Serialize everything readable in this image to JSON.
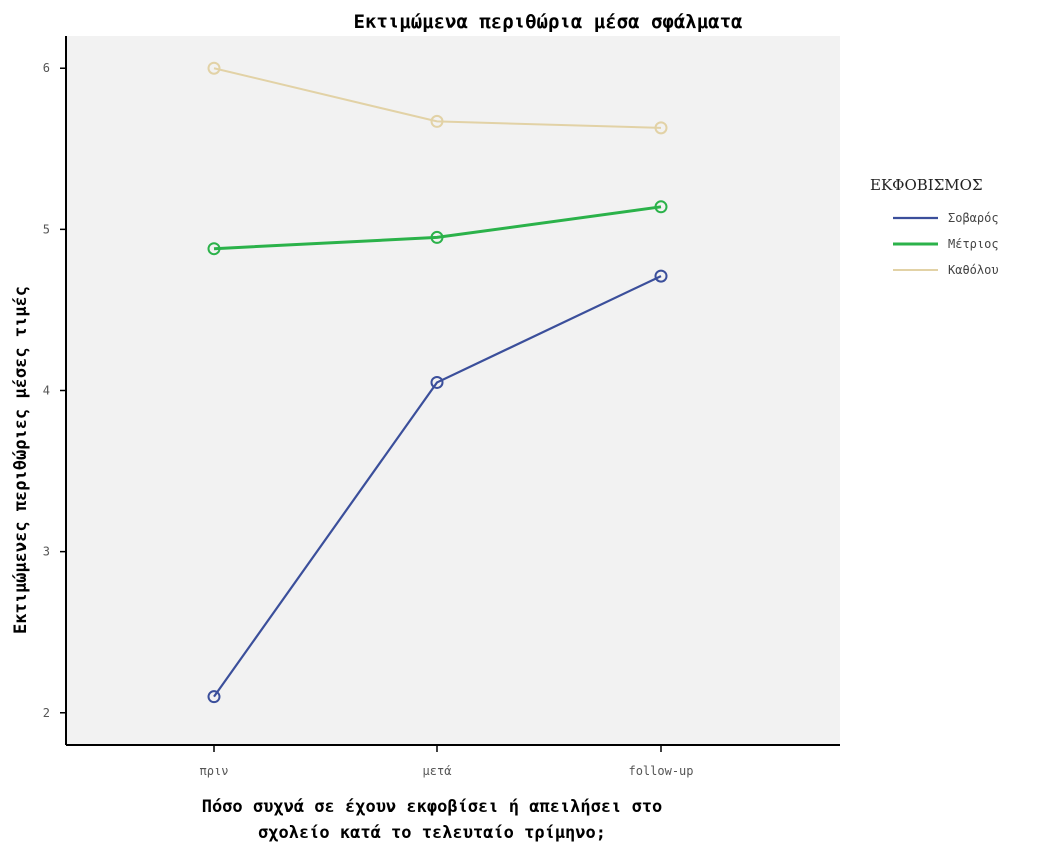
{
  "chart_data": {
    "type": "line",
    "title": "Εκτιμώμενα περιθώρια μέσα σφάλματα",
    "xlabel": [
      "Πόσο συχνά σε έχουν εκφοβίσει ή απειλήσει στο",
      "σχολείο κατά το τελευταίο τρίμηνο;"
    ],
    "ylabel": "Εκτιμώμενες περιθώριες μέσες τιμές",
    "categories": [
      "πριν",
      "μετά",
      "follow-up"
    ],
    "ylim": [
      1.8,
      6.2
    ],
    "yticks": [
      2,
      3,
      4,
      5,
      6
    ],
    "legend": {
      "title": "ΕΚΦΟΒΙΣΜΟΣ",
      "position": "right"
    },
    "series": [
      {
        "name": "Σοβαρός",
        "values": [
          2.1,
          4.05,
          4.71
        ],
        "color": "#3b4f9b"
      },
      {
        "name": "Μέτριος",
        "values": [
          4.88,
          4.95,
          5.14
        ],
        "color": "#2bb24a"
      },
      {
        "name": "Καθόλου",
        "values": [
          6.0,
          5.67,
          5.63
        ],
        "color": "#e2d2a6"
      }
    ],
    "plot_background": "#f2f2f2"
  }
}
